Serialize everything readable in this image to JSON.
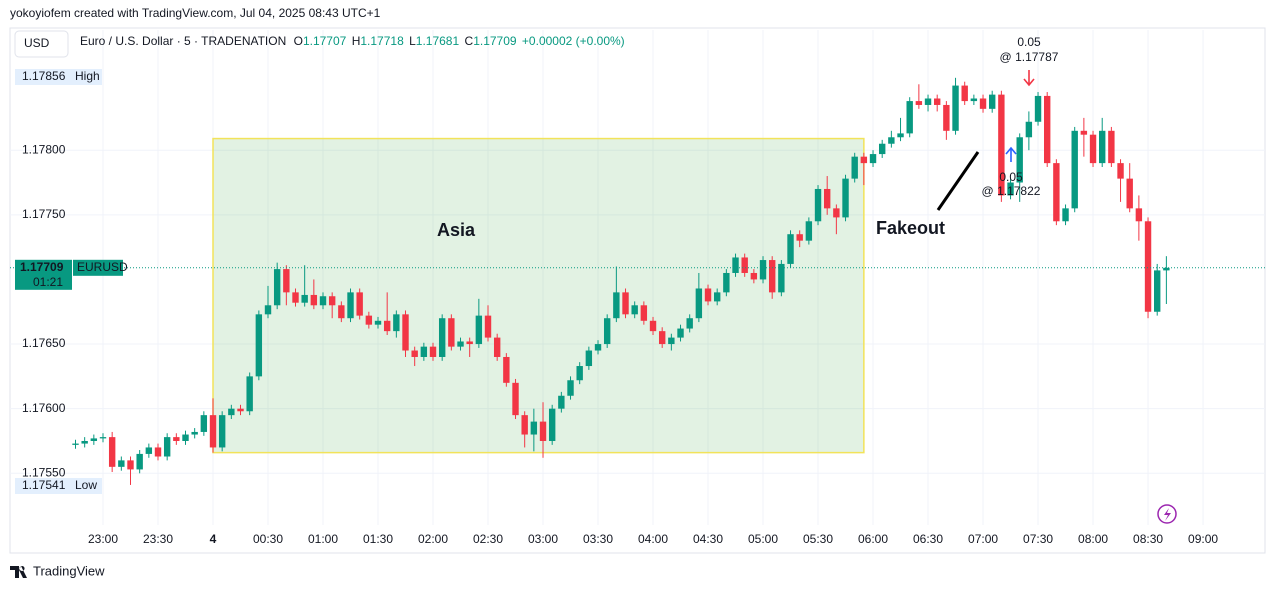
{
  "header": {
    "author_line": "yokoyiofem created with TradingView.com, Jul 04, 2025 08:43 UTC+1"
  },
  "chart_data": {
    "type": "candlestick",
    "currency": "USD",
    "symbol_line": "Euro / U.S. Dollar · 5 · TRADENATION",
    "ohlc_labels": [
      "O",
      "H",
      "L",
      "C"
    ],
    "change": "+0.00002 (+0.00%)",
    "colors": {
      "up": "#089981",
      "down": "#f23645"
    },
    "x": [
      "22:45",
      "22:50",
      "22:55",
      "23:00",
      "23:05",
      "23:10",
      "23:15",
      "23:20",
      "23:25",
      "23:30",
      "23:35",
      "23:40",
      "23:45",
      "23:50",
      "23:55",
      "00:00",
      "00:05",
      "00:10",
      "00:15",
      "00:20",
      "00:25",
      "00:30",
      "00:35",
      "00:40",
      "00:45",
      "00:50",
      "00:55",
      "01:00",
      "01:05",
      "01:10",
      "01:15",
      "01:20",
      "01:25",
      "01:30",
      "01:35",
      "01:40",
      "01:45",
      "01:50",
      "01:55",
      "02:00",
      "02:05",
      "02:10",
      "02:15",
      "02:20",
      "02:25",
      "02:30",
      "02:35",
      "02:40",
      "02:45",
      "02:50",
      "02:55",
      "03:00",
      "03:05",
      "03:10",
      "03:15",
      "03:20",
      "03:25",
      "03:30",
      "03:35",
      "03:40",
      "03:45",
      "03:50",
      "03:55",
      "04:00",
      "04:05",
      "04:10",
      "04:15",
      "04:20",
      "04:25",
      "04:30",
      "04:35",
      "04:40",
      "04:45",
      "04:50",
      "04:55",
      "05:00",
      "05:05",
      "05:10",
      "05:15",
      "05:20",
      "05:25",
      "05:30",
      "05:35",
      "05:40",
      "05:45",
      "05:50",
      "05:55",
      "06:00",
      "06:05",
      "06:10",
      "06:15",
      "06:20",
      "06:25",
      "06:30",
      "06:35",
      "06:40",
      "06:45",
      "06:50",
      "06:55",
      "07:00",
      "07:05",
      "07:10",
      "07:15",
      "07:20",
      "07:25",
      "07:30",
      "07:35",
      "07:40",
      "07:45",
      "07:50",
      "07:55",
      "08:00",
      "08:05",
      "08:10",
      "08:15",
      "08:20",
      "08:25",
      "08:30",
      "08:35",
      "08:40"
    ],
    "ohlc": [
      [
        1.17572,
        1.17576,
        1.17569,
        1.17573
      ],
      [
        1.17573,
        1.17578,
        1.1757,
        1.17575
      ],
      [
        1.17575,
        1.1758,
        1.17572,
        1.17577
      ],
      [
        1.17577,
        1.17581,
        1.17574,
        1.17578
      ],
      [
        1.17578,
        1.17582,
        1.17551,
        1.17555
      ],
      [
        1.17555,
        1.17563,
        1.17552,
        1.1756
      ],
      [
        1.1756,
        1.17563,
        1.17541,
        1.17553
      ],
      [
        1.17553,
        1.17568,
        1.1755,
        1.17565
      ],
      [
        1.17565,
        1.17573,
        1.17562,
        1.1757
      ],
      [
        1.1757,
        1.17573,
        1.1756,
        1.17563
      ],
      [
        1.17563,
        1.17581,
        1.1756,
        1.17578
      ],
      [
        1.17578,
        1.17581,
        1.17572,
        1.17575
      ],
      [
        1.17575,
        1.17583,
        1.17572,
        1.1758
      ],
      [
        1.1758,
        1.17585,
        1.17577,
        1.17582
      ],
      [
        1.17582,
        1.17598,
        1.17579,
        1.17595
      ],
      [
        1.17595,
        1.17608,
        1.17566,
        1.1757
      ],
      [
        1.1757,
        1.17598,
        1.17567,
        1.17595
      ],
      [
        1.17595,
        1.17603,
        1.17592,
        1.176
      ],
      [
        1.176,
        1.17603,
        1.17595,
        1.17598
      ],
      [
        1.17598,
        1.17628,
        1.17595,
        1.17625
      ],
      [
        1.17625,
        1.17676,
        1.17622,
        1.17673
      ],
      [
        1.17673,
        1.17695,
        1.1767,
        1.1768
      ],
      [
        1.1768,
        1.17713,
        1.17677,
        1.17708
      ],
      [
        1.17708,
        1.17711,
        1.1768,
        1.1769
      ],
      [
        1.1769,
        1.17693,
        1.17679,
        1.17682
      ],
      [
        1.17682,
        1.17711,
        1.17679,
        1.17688
      ],
      [
        1.17688,
        1.177,
        1.17677,
        1.1768
      ],
      [
        1.1768,
        1.1769,
        1.17677,
        1.17687
      ],
      [
        1.17687,
        1.1769,
        1.1767,
        1.1768
      ],
      [
        1.1768,
        1.17683,
        1.17667,
        1.1767
      ],
      [
        1.1767,
        1.17693,
        1.17667,
        1.1769
      ],
      [
        1.1769,
        1.17693,
        1.17669,
        1.17672
      ],
      [
        1.17672,
        1.17675,
        1.17662,
        1.17665
      ],
      [
        1.17665,
        1.17671,
        1.17662,
        1.17668
      ],
      [
        1.17668,
        1.1769,
        1.17657,
        1.1766
      ],
      [
        1.1766,
        1.17676,
        1.17655,
        1.17673
      ],
      [
        1.17673,
        1.17676,
        1.1764,
        1.17645
      ],
      [
        1.17645,
        1.17648,
        1.17633,
        1.1764
      ],
      [
        1.1764,
        1.17651,
        1.17637,
        1.17648
      ],
      [
        1.17648,
        1.17651,
        1.17637,
        1.1764
      ],
      [
        1.1764,
        1.17673,
        1.17637,
        1.1767
      ],
      [
        1.1767,
        1.17673,
        1.17645,
        1.17648
      ],
      [
        1.17648,
        1.17655,
        1.17645,
        1.17652
      ],
      [
        1.17652,
        1.17655,
        1.1764,
        1.1765
      ],
      [
        1.1765,
        1.17685,
        1.17647,
        1.17672
      ],
      [
        1.17672,
        1.1768,
        1.17652,
        1.17655
      ],
      [
        1.17655,
        1.17658,
        1.17637,
        1.1764
      ],
      [
        1.1764,
        1.17643,
        1.17617,
        1.1762
      ],
      [
        1.1762,
        1.17623,
        1.17592,
        1.17595
      ],
      [
        1.17595,
        1.17598,
        1.1757,
        1.1758
      ],
      [
        1.1758,
        1.176,
        1.17567,
        1.1759
      ],
      [
        1.1759,
        1.17605,
        1.17562,
        1.17575
      ],
      [
        1.17575,
        1.17603,
        1.17572,
        1.176
      ],
      [
        1.176,
        1.17613,
        1.17597,
        1.1761
      ],
      [
        1.1761,
        1.17625,
        1.17607,
        1.17622
      ],
      [
        1.17622,
        1.17636,
        1.17619,
        1.17633
      ],
      [
        1.17633,
        1.17648,
        1.1763,
        1.17645
      ],
      [
        1.17645,
        1.17653,
        1.17642,
        1.1765
      ],
      [
        1.1765,
        1.17673,
        1.17647,
        1.1767
      ],
      [
        1.1767,
        1.1771,
        1.17667,
        1.1769
      ],
      [
        1.1769,
        1.17693,
        1.1767,
        1.17673
      ],
      [
        1.17673,
        1.17683,
        1.1767,
        1.1768
      ],
      [
        1.1768,
        1.17683,
        1.17665,
        1.17668
      ],
      [
        1.17668,
        1.17671,
        1.17657,
        1.1766
      ],
      [
        1.1766,
        1.17663,
        1.17647,
        1.1765
      ],
      [
        1.1765,
        1.17658,
        1.17645,
        1.17655
      ],
      [
        1.17655,
        1.17665,
        1.17652,
        1.17662
      ],
      [
        1.17662,
        1.17673,
        1.17659,
        1.1767
      ],
      [
        1.1767,
        1.17705,
        1.17667,
        1.17693
      ],
      [
        1.17693,
        1.17696,
        1.1768,
        1.17683
      ],
      [
        1.17683,
        1.17693,
        1.1768,
        1.1769
      ],
      [
        1.1769,
        1.17708,
        1.17687,
        1.17705
      ],
      [
        1.17705,
        1.1772,
        1.17702,
        1.17717
      ],
      [
        1.17717,
        1.1772,
        1.17702,
        1.17705
      ],
      [
        1.17705,
        1.17708,
        1.17697,
        1.177
      ],
      [
        1.177,
        1.17718,
        1.17697,
        1.17715
      ],
      [
        1.17715,
        1.17718,
        1.17685,
        1.1769
      ],
      [
        1.1769,
        1.17715,
        1.17687,
        1.17712
      ],
      [
        1.17712,
        1.17738,
        1.17709,
        1.17735
      ],
      [
        1.17735,
        1.17738,
        1.17725,
        1.1773
      ],
      [
        1.1773,
        1.17748,
        1.17727,
        1.17745
      ],
      [
        1.17745,
        1.17773,
        1.17742,
        1.1777
      ],
      [
        1.1777,
        1.1778,
        1.1775,
        1.17755
      ],
      [
        1.17755,
        1.17758,
        1.17735,
        1.17748
      ],
      [
        1.17748,
        1.17781,
        1.17745,
        1.17778
      ],
      [
        1.17778,
        1.17798,
        1.17775,
        1.17795
      ],
      [
        1.17795,
        1.17798,
        1.17773,
        1.1779
      ],
      [
        1.1779,
        1.178,
        1.17787,
        1.17797
      ],
      [
        1.17797,
        1.17808,
        1.17794,
        1.17805
      ],
      [
        1.17805,
        1.17815,
        1.17802,
        1.1781
      ],
      [
        1.1781,
        1.17825,
        1.17807,
        1.17813
      ],
      [
        1.17813,
        1.17841,
        1.1781,
        1.17838
      ],
      [
        1.17838,
        1.17851,
        1.17832,
        1.17835
      ],
      [
        1.17835,
        1.17843,
        1.1783,
        1.1784
      ],
      [
        1.1784,
        1.17843,
        1.1783,
        1.17835
      ],
      [
        1.17835,
        1.17838,
        1.17808,
        1.17815
      ],
      [
        1.17815,
        1.17856,
        1.17812,
        1.1785
      ],
      [
        1.1785,
        1.17853,
        1.17835,
        1.17838
      ],
      [
        1.17838,
        1.17843,
        1.17835,
        1.1784
      ],
      [
        1.1784,
        1.17843,
        1.17829,
        1.17832
      ],
      [
        1.17832,
        1.17846,
        1.17829,
        1.17843
      ],
      [
        1.17843,
        1.17846,
        1.1776,
        1.17765
      ],
      [
        1.17765,
        1.17778,
        1.17762,
        1.17775
      ],
      [
        1.17775,
        1.17813,
        1.1776,
        1.1781
      ],
      [
        1.1781,
        1.1783,
        1.178,
        1.17822
      ],
      [
        1.17822,
        1.17845,
        1.17819,
        1.17842
      ],
      [
        1.17842,
        1.17845,
        1.17787,
        1.1779
      ],
      [
        1.1779,
        1.17793,
        1.17742,
        1.17745
      ],
      [
        1.17745,
        1.17758,
        1.17742,
        1.17755
      ],
      [
        1.17755,
        1.17818,
        1.17752,
        1.17815
      ],
      [
        1.17815,
        1.17825,
        1.17795,
        1.17812
      ],
      [
        1.17812,
        1.17815,
        1.17787,
        1.1779
      ],
      [
        1.1779,
        1.17825,
        1.17787,
        1.17815
      ],
      [
        1.17815,
        1.17818,
        1.17787,
        1.1779
      ],
      [
        1.1779,
        1.17793,
        1.1776,
        1.17778
      ],
      [
        1.17778,
        1.1779,
        1.17752,
        1.17755
      ],
      [
        1.17755,
        1.17765,
        1.1773,
        1.17745
      ],
      [
        1.17745,
        1.17748,
        1.1767,
        1.17675
      ],
      [
        1.17675,
        1.17712,
        1.17672,
        1.17707
      ],
      [
        1.17707,
        1.17718,
        1.17681,
        1.17709
      ]
    ],
    "ylim": [
      1.1751,
      1.17893
    ],
    "yticks": [
      {
        "value": 1.1755,
        "label": "1.17550"
      },
      {
        "value": 1.176,
        "label": "1.17600"
      },
      {
        "value": 1.1765,
        "label": "1.17650"
      },
      {
        "value": 1.1775,
        "label": "1.17750"
      },
      {
        "value": 1.178,
        "label": "1.17800"
      }
    ],
    "xticks": [
      "23:00",
      "23:30",
      {
        "value": "00:00",
        "label": "4"
      },
      "00:30",
      "01:00",
      "01:30",
      "02:00",
      "02:30",
      "03:00",
      "03:30",
      "04:00",
      "04:30",
      "05:00",
      "05:30",
      "06:00",
      "06:30",
      "07:00",
      "07:30",
      "08:00",
      "08:30",
      "09:00"
    ],
    "grid": true,
    "high_label": "High",
    "low_label": "Low",
    "last_price": {
      "symbol": "EURUSD",
      "countdown": "01:21"
    },
    "zone": {
      "label": "Asia",
      "start": "00:00",
      "end": "05:55",
      "top": 1.17809,
      "bottom": 1.17566
    },
    "annotation": "Fakeout",
    "trades": [
      {
        "qty": 0.05,
        "price_label": "@ 1.17787"
      },
      {
        "qty": 0.05,
        "price_label": "@ 1.17822"
      }
    ]
  },
  "footer": {
    "brand": "TradingView"
  }
}
